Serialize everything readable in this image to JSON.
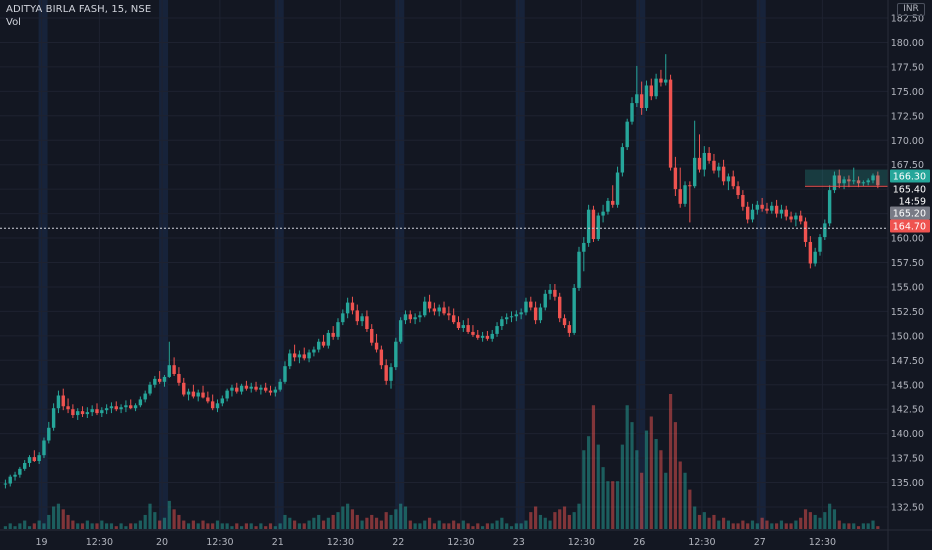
{
  "header": {
    "title": "ADITYA BIRLA FASH, 15, NSE",
    "volume_label": "Vol",
    "currency": "INR"
  },
  "colors": {
    "bg": "#131722",
    "up": "#26a69a",
    "down": "#ef5350",
    "session": "#17233a",
    "grid": "#1e2230",
    "text": "#b2b5be"
  },
  "price_tags": [
    {
      "label": "166.30",
      "bg": "#26a69a",
      "fg": "#ffffff"
    },
    {
      "label": "165.40",
      "bg": "#131722",
      "fg": "#ffffff"
    },
    {
      "label": "14:59",
      "bg": "#131722",
      "fg": "#ffffff"
    },
    {
      "label": "165.20",
      "bg": "#787b86",
      "fg": "#ffffff"
    },
    {
      "label": "164.70",
      "bg": "#ef5350",
      "fg": "#ffffff"
    }
  ],
  "chart_data": {
    "type": "candlestick",
    "title": "ADITYA BIRLA FASH, 15, NSE",
    "interval": "15",
    "exchange": "NSE",
    "currency": "INR",
    "ylim": [
      130.5,
      183.0
    ],
    "y_ticks": [
      "132.50",
      "135.00",
      "137.50",
      "140.00",
      "142.50",
      "145.00",
      "147.50",
      "150.00",
      "152.50",
      "155.00",
      "157.50",
      "160.00",
      "162.50",
      "165.00",
      "167.50",
      "170.00",
      "172.50",
      "175.00",
      "177.50",
      "180.00",
      "182.50"
    ],
    "x_tick_labels": [
      "19",
      "12:30",
      "20",
      "12:30",
      "21",
      "12:30",
      "22",
      "12:30",
      "23",
      "12:30",
      "26",
      "12:30",
      "27",
      "12:30"
    ],
    "days": [
      "19",
      "20",
      "21",
      "22",
      "23",
      "26",
      "27"
    ],
    "reference_line": 161.0,
    "last_price": 166.3,
    "last_close": 165.4,
    "countdown": "14:59",
    "volume_label": "Vol",
    "candles": [
      [
        134.8,
        135.3,
        134.4,
        134.9
      ],
      [
        134.9,
        135.8,
        134.6,
        135.6
      ],
      [
        135.6,
        136.1,
        135.2,
        135.8
      ],
      [
        135.8,
        136.6,
        135.5,
        136.4
      ],
      [
        136.4,
        137.3,
        136.2,
        137.0
      ],
      [
        137.0,
        137.8,
        136.6,
        137.6
      ],
      [
        137.6,
        138.3,
        137.1,
        137.2
      ],
      [
        137.2,
        138.1,
        136.9,
        137.8
      ],
      [
        137.8,
        139.6,
        137.5,
        139.3
      ],
      [
        139.3,
        141.2,
        139.0,
        140.6
      ],
      [
        140.6,
        143.1,
        140.3,
        142.6
      ],
      [
        142.6,
        144.4,
        142.1,
        143.9
      ],
      [
        143.9,
        144.6,
        142.4,
        142.8
      ],
      [
        142.8,
        143.6,
        142.1,
        142.5
      ],
      [
        142.5,
        143.0,
        141.6,
        141.9
      ],
      [
        141.9,
        142.6,
        141.4,
        142.3
      ],
      [
        142.3,
        142.8,
        141.7,
        142.0
      ],
      [
        142.0,
        142.7,
        141.6,
        142.2
      ],
      [
        142.2,
        142.9,
        141.8,
        142.5
      ],
      [
        142.5,
        143.1,
        141.9,
        142.1
      ],
      [
        142.1,
        142.7,
        141.7,
        142.4
      ],
      [
        142.4,
        143.0,
        142.0,
        142.6
      ],
      [
        142.6,
        143.2,
        142.1,
        142.8
      ],
      [
        142.8,
        143.3,
        142.3,
        142.5
      ],
      [
        142.5,
        143.0,
        142.1,
        142.7
      ],
      [
        142.7,
        143.4,
        142.2,
        142.9
      ],
      [
        142.9,
        143.5,
        142.5,
        142.6
      ],
      [
        142.6,
        143.1,
        142.3,
        142.9
      ],
      [
        142.9,
        143.8,
        142.7,
        143.5
      ],
      [
        143.5,
        144.4,
        143.2,
        144.1
      ],
      [
        144.1,
        145.3,
        143.9,
        145.0
      ],
      [
        145.0,
        145.9,
        144.7,
        145.6
      ],
      [
        145.6,
        146.4,
        145.1,
        145.3
      ],
      [
        145.3,
        146.0,
        144.8,
        145.8
      ],
      [
        145.8,
        149.4,
        145.7,
        147.0
      ],
      [
        147.0,
        147.8,
        145.9,
        146.1
      ],
      [
        146.1,
        146.8,
        144.9,
        145.2
      ],
      [
        145.2,
        145.7,
        143.8,
        144.0
      ],
      [
        144.0,
        144.6,
        143.4,
        144.3
      ],
      [
        144.3,
        145.0,
        143.6,
        143.8
      ],
      [
        143.8,
        144.5,
        143.3,
        144.2
      ],
      [
        144.2,
        144.9,
        143.6,
        143.7
      ],
      [
        143.7,
        144.3,
        143.1,
        143.3
      ],
      [
        143.3,
        144.0,
        142.4,
        142.6
      ],
      [
        142.6,
        143.5,
        142.2,
        143.1
      ],
      [
        143.1,
        143.9,
        142.8,
        143.6
      ],
      [
        143.6,
        144.6,
        143.3,
        144.4
      ],
      [
        144.4,
        145.0,
        143.8,
        144.7
      ],
      [
        144.7,
        145.2,
        144.1,
        144.3
      ],
      [
        144.3,
        145.1,
        144.0,
        144.9
      ],
      [
        144.9,
        145.4,
        144.4,
        144.6
      ],
      [
        144.6,
        145.2,
        144.2,
        144.8
      ],
      [
        144.8,
        145.3,
        144.3,
        144.5
      ],
      [
        144.5,
        145.0,
        144.0,
        144.7
      ],
      [
        144.7,
        145.2,
        144.2,
        144.4
      ],
      [
        144.4,
        144.9,
        143.9,
        144.2
      ],
      [
        144.2,
        144.8,
        143.8,
        144.5
      ],
      [
        144.5,
        145.6,
        144.3,
        145.3
      ],
      [
        145.3,
        147.4,
        145.1,
        146.9
      ],
      [
        146.9,
        148.6,
        146.6,
        148.2
      ],
      [
        148.2,
        149.1,
        147.4,
        147.8
      ],
      [
        147.8,
        148.5,
        147.2,
        148.1
      ],
      [
        148.1,
        148.8,
        147.5,
        147.7
      ],
      [
        147.7,
        148.6,
        147.3,
        148.3
      ],
      [
        148.3,
        148.9,
        147.9,
        148.6
      ],
      [
        148.6,
        149.7,
        148.3,
        149.4
      ],
      [
        149.4,
        150.1,
        148.8,
        149.0
      ],
      [
        149.0,
        150.6,
        148.7,
        150.3
      ],
      [
        150.3,
        151.0,
        149.6,
        149.9
      ],
      [
        149.9,
        151.8,
        149.6,
        151.4
      ],
      [
        151.4,
        152.7,
        151.1,
        152.3
      ],
      [
        152.3,
        153.9,
        151.8,
        153.4
      ],
      [
        153.4,
        154.0,
        152.2,
        152.6
      ],
      [
        152.6,
        153.2,
        151.1,
        151.5
      ],
      [
        151.5,
        152.3,
        151.0,
        152.0
      ],
      [
        152.0,
        152.6,
        150.4,
        150.7
      ],
      [
        150.7,
        151.2,
        149.0,
        149.3
      ],
      [
        149.3,
        150.2,
        148.3,
        148.6
      ],
      [
        148.6,
        149.0,
        146.6,
        147.0
      ],
      [
        147.0,
        147.6,
        145.0,
        145.4
      ],
      [
        145.4,
        147.2,
        144.6,
        146.8
      ],
      [
        146.8,
        149.8,
        146.5,
        149.4
      ],
      [
        149.4,
        151.9,
        149.2,
        151.6
      ],
      [
        151.6,
        152.6,
        151.2,
        152.2
      ],
      [
        152.2,
        152.6,
        151.3,
        151.7
      ],
      [
        151.7,
        152.3,
        151.2,
        151.9
      ],
      [
        151.9,
        152.5,
        151.4,
        152.1
      ],
      [
        152.1,
        154.0,
        151.9,
        153.5
      ],
      [
        153.5,
        154.2,
        152.4,
        152.8
      ],
      [
        152.8,
        153.4,
        152.1,
        152.5
      ],
      [
        152.5,
        153.2,
        152.0,
        152.9
      ],
      [
        152.9,
        153.5,
        152.1,
        152.3
      ],
      [
        152.3,
        153.0,
        151.6,
        152.1
      ],
      [
        152.1,
        152.8,
        151.2,
        151.4
      ],
      [
        151.4,
        152.0,
        150.6,
        150.8
      ],
      [
        150.8,
        151.6,
        150.4,
        151.1
      ],
      [
        151.1,
        151.8,
        150.2,
        150.4
      ],
      [
        150.4,
        151.1,
        149.9,
        150.1
      ],
      [
        150.1,
        150.6,
        149.6,
        149.8
      ],
      [
        149.8,
        150.4,
        149.4,
        150.0
      ],
      [
        150.0,
        150.5,
        149.5,
        149.7
      ],
      [
        149.7,
        150.6,
        149.4,
        150.2
      ],
      [
        150.2,
        151.4,
        149.9,
        151.0
      ],
      [
        151.0,
        152.0,
        150.6,
        151.7
      ],
      [
        151.7,
        152.3,
        151.2,
        151.9
      ],
      [
        151.9,
        152.5,
        151.4,
        152.0
      ],
      [
        152.0,
        152.6,
        151.5,
        152.2
      ],
      [
        152.2,
        152.8,
        151.7,
        152.4
      ],
      [
        152.4,
        153.9,
        152.1,
        153.5
      ],
      [
        153.5,
        154.0,
        152.6,
        152.9
      ],
      [
        152.9,
        153.5,
        151.2,
        151.6
      ],
      [
        151.6,
        153.3,
        151.3,
        152.9
      ],
      [
        152.9,
        154.7,
        152.6,
        154.3
      ],
      [
        154.3,
        155.3,
        153.7,
        154.7
      ],
      [
        154.7,
        155.3,
        153.6,
        154.0
      ],
      [
        154.0,
        154.4,
        151.4,
        151.8
      ],
      [
        151.8,
        152.2,
        150.8,
        151.1
      ],
      [
        151.1,
        151.5,
        149.9,
        150.3
      ],
      [
        150.3,
        155.3,
        150.1,
        154.9
      ],
      [
        154.9,
        159.1,
        154.6,
        158.6
      ],
      [
        158.6,
        160.1,
        156.6,
        159.5
      ],
      [
        159.5,
        163.4,
        159.1,
        162.9
      ],
      [
        162.9,
        163.3,
        159.6,
        159.9
      ],
      [
        159.9,
        162.6,
        159.7,
        162.3
      ],
      [
        162.3,
        163.4,
        161.6,
        162.7
      ],
      [
        162.7,
        164.1,
        162.4,
        163.8
      ],
      [
        163.8,
        165.4,
        163.1,
        163.4
      ],
      [
        163.4,
        167.3,
        163.1,
        166.7
      ],
      [
        166.7,
        169.7,
        166.3,
        169.3
      ],
      [
        169.3,
        172.2,
        169.0,
        171.9
      ],
      [
        171.9,
        174.4,
        171.6,
        173.8
      ],
      [
        173.8,
        177.6,
        173.4,
        174.7
      ],
      [
        174.7,
        176.0,
        172.6,
        173.3
      ],
      [
        173.3,
        176.1,
        173.0,
        175.6
      ],
      [
        175.6,
        176.3,
        174.1,
        174.5
      ],
      [
        174.5,
        176.8,
        174.2,
        176.3
      ],
      [
        176.3,
        177.2,
        175.5,
        175.9
      ],
      [
        175.9,
        178.8,
        175.6,
        176.2
      ],
      [
        176.2,
        176.7,
        166.9,
        167.2
      ],
      [
        167.2,
        168.3,
        164.3,
        165.0
      ],
      [
        165.0,
        167.2,
        163.1,
        163.5
      ],
      [
        163.5,
        165.8,
        163.2,
        165.4
      ],
      [
        165.4,
        165.8,
        161.6,
        165.3
      ],
      [
        165.3,
        172.0,
        165.1,
        168.2
      ],
      [
        168.2,
        170.6,
        166.7,
        167.0
      ],
      [
        167.0,
        169.4,
        166.3,
        168.7
      ],
      [
        168.7,
        169.3,
        167.6,
        167.9
      ],
      [
        167.9,
        168.6,
        166.6,
        166.9
      ],
      [
        166.9,
        167.7,
        166.2,
        167.3
      ],
      [
        167.3,
        168.0,
        165.4,
        165.8
      ],
      [
        165.8,
        166.6,
        164.9,
        166.3
      ],
      [
        166.3,
        166.9,
        165.0,
        165.3
      ],
      [
        165.3,
        165.8,
        164.0,
        164.4
      ],
      [
        164.4,
        164.9,
        162.8,
        163.2
      ],
      [
        163.2,
        163.7,
        161.5,
        161.9
      ],
      [
        161.9,
        163.5,
        161.6,
        162.9
      ],
      [
        162.9,
        163.8,
        162.4,
        163.4
      ],
      [
        163.4,
        164.1,
        162.7,
        163.0
      ],
      [
        163.0,
        163.6,
        162.5,
        162.8
      ],
      [
        162.8,
        163.7,
        162.5,
        163.3
      ],
      [
        163.3,
        163.9,
        162.1,
        162.5
      ],
      [
        162.5,
        163.4,
        162.0,
        162.9
      ],
      [
        162.9,
        163.3,
        161.8,
        162.2
      ],
      [
        162.2,
        162.7,
        161.6,
        161.9
      ],
      [
        161.9,
        162.6,
        161.2,
        162.3
      ],
      [
        162.3,
        162.8,
        161.4,
        161.7
      ],
      [
        161.7,
        162.1,
        159.1,
        159.6
      ],
      [
        159.6,
        160.2,
        156.9,
        157.4
      ],
      [
        157.4,
        159.0,
        157.1,
        158.6
      ],
      [
        158.6,
        160.4,
        158.2,
        160.1
      ],
      [
        160.1,
        161.9,
        159.8,
        161.5
      ],
      [
        161.5,
        165.4,
        161.2,
        164.9
      ],
      [
        164.9,
        166.8,
        164.6,
        166.4
      ],
      [
        166.4,
        167.0,
        165.1,
        165.6
      ],
      [
        165.6,
        166.3,
        165.0,
        166.0
      ],
      [
        166.0,
        166.4,
        165.2,
        165.8
      ],
      [
        165.8,
        167.2,
        165.5,
        165.9
      ],
      [
        165.9,
        166.3,
        165.2,
        165.6
      ],
      [
        165.6,
        165.9,
        165.3,
        165.7
      ],
      [
        165.7,
        166.1,
        165.4,
        165.9
      ],
      [
        165.9,
        166.6,
        165.6,
        166.4
      ],
      [
        166.4,
        166.8,
        165.1,
        165.4
      ]
    ],
    "volume": [
      1,
      2,
      1,
      2,
      3,
      1,
      2,
      3,
      2,
      5,
      8,
      9,
      7,
      5,
      3,
      2,
      2,
      3,
      2,
      2,
      3,
      2,
      2,
      1,
      2,
      1,
      2,
      2,
      3,
      5,
      9,
      6,
      3,
      4,
      10,
      7,
      5,
      3,
      2,
      3,
      2,
      3,
      2,
      2,
      3,
      2,
      2,
      1,
      2,
      1,
      2,
      2,
      1,
      2,
      1,
      2,
      1,
      2,
      5,
      4,
      3,
      2,
      2,
      3,
      4,
      5,
      3,
      4,
      5,
      6,
      8,
      9,
      7,
      5,
      3,
      4,
      5,
      4,
      3,
      6,
      5,
      7,
      9,
      8,
      3,
      2,
      2,
      3,
      4,
      2,
      3,
      2,
      2,
      3,
      2,
      3,
      2,
      1,
      2,
      1,
      2,
      2,
      3,
      4,
      2,
      1,
      2,
      2,
      3,
      6,
      8,
      5,
      4,
      3,
      6,
      7,
      8,
      5,
      6,
      9,
      28,
      33,
      44,
      30,
      22,
      17,
      17,
      17,
      30,
      44,
      38,
      28,
      20,
      35,
      40,
      32,
      28,
      20,
      48,
      38,
      24,
      20,
      14,
      8,
      5,
      6,
      4,
      5,
      3,
      4,
      3,
      2,
      2,
      3,
      2,
      3,
      2,
      4,
      3,
      2,
      2,
      3,
      2,
      2,
      3,
      4,
      7,
      6,
      5,
      4,
      6,
      9,
      7,
      3,
      2,
      2,
      2,
      1,
      2,
      2,
      3,
      1
    ]
  }
}
